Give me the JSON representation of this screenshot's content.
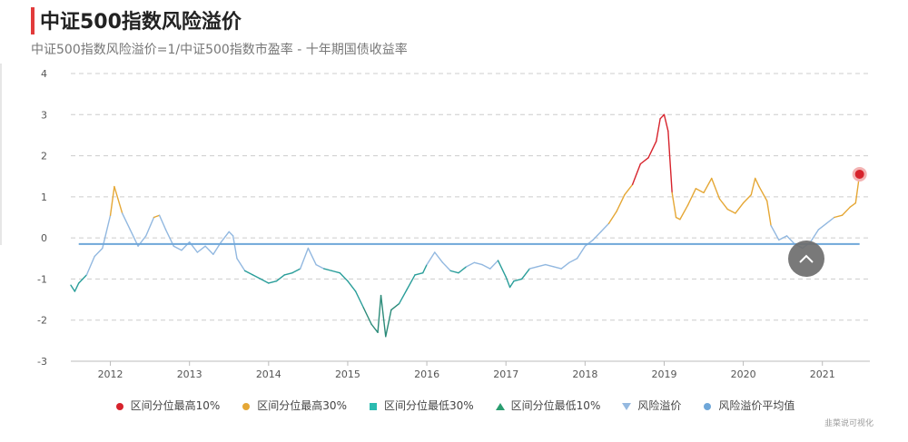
{
  "header": {
    "title": "中证500指数风险溢价",
    "subtitle": "中证500指数风险溢价=1/中证500指数市盈率 - 十年期国债收益率"
  },
  "source": "韭菜说可视化",
  "legend": [
    {
      "label": "区间分位最高10%",
      "color": "#d7232c",
      "marker": "circle"
    },
    {
      "label": "区间分位最高30%",
      "color": "#e5a735",
      "marker": "circle"
    },
    {
      "label": "区间分位最低30%",
      "color": "#2bbbb0",
      "marker": "square"
    },
    {
      "label": "区间分位最低10%",
      "color": "#2a9d70",
      "marker": "triangle"
    },
    {
      "label": "风险溢价",
      "color": "#95b9e0",
      "marker": "triangle-down"
    },
    {
      "label": "风险溢价平均值",
      "color": "#6fa7d9",
      "marker": "circle"
    }
  ],
  "colors": {
    "top10": "#d7232c",
    "top30": "#e5a735",
    "low30": "#2a9e9a",
    "low10": "#2a8a78",
    "mid": "#92b8e0",
    "average": "#6fa7d9",
    "grid": "#cccccc"
  },
  "chart_data": {
    "type": "line",
    "title": "中证500指数风险溢价",
    "ylim": [
      -3,
      4
    ],
    "yticks": [
      "4",
      "3",
      "2",
      "1",
      "0",
      "-1",
      "-2",
      "-3"
    ],
    "xlim": [
      2011.5,
      2021.6
    ],
    "xticks": [
      "2012",
      "2013",
      "2014",
      "2015",
      "2016",
      "2017",
      "2018",
      "2019",
      "2020",
      "2021"
    ],
    "average": -0.15,
    "last_point": {
      "x": 2021.47,
      "y": 1.55
    },
    "series": [
      {
        "name": "风险溢价",
        "x": [
          2011.5,
          2011.55,
          2011.6,
          2011.7,
          2011.8,
          2011.9,
          2012.0,
          2012.05,
          2012.15,
          2012.25,
          2012.35,
          2012.45,
          2012.55,
          2012.62,
          2012.7,
          2012.8,
          2012.9,
          2013.0,
          2013.1,
          2013.2,
          2013.3,
          2013.4,
          2013.5,
          2013.55,
          2013.6,
          2013.7,
          2013.8,
          2013.9,
          2014.0,
          2014.1,
          2014.2,
          2014.3,
          2014.4,
          2014.5,
          2014.6,
          2014.7,
          2014.8,
          2014.9,
          2015.0,
          2015.1,
          2015.2,
          2015.3,
          2015.38,
          2015.42,
          2015.48,
          2015.55,
          2015.65,
          2015.75,
          2015.85,
          2015.95,
          2016.0,
          2016.1,
          2016.2,
          2016.3,
          2016.4,
          2016.5,
          2016.6,
          2016.7,
          2016.8,
          2016.9,
          2017.0,
          2017.05,
          2017.1,
          2017.2,
          2017.3,
          2017.4,
          2017.5,
          2017.6,
          2017.7,
          2017.8,
          2017.9,
          2018.0,
          2018.1,
          2018.2,
          2018.3,
          2018.4,
          2018.5,
          2018.6,
          2018.7,
          2018.8,
          2018.9,
          2018.95,
          2019.0,
          2019.05,
          2019.1,
          2019.15,
          2019.2,
          2019.3,
          2019.4,
          2019.5,
          2019.6,
          2019.7,
          2019.8,
          2019.9,
          2020.0,
          2020.1,
          2020.15,
          2020.2,
          2020.3,
          2020.35,
          2020.45,
          2020.55,
          2020.65,
          2020.75,
          2020.85,
          2020.95,
          2021.05,
          2021.15,
          2021.25,
          2021.35,
          2021.42,
          2021.47
        ],
        "values": [
          -1.15,
          -1.3,
          -1.1,
          -0.9,
          -0.45,
          -0.25,
          0.55,
          1.25,
          0.6,
          0.2,
          -0.2,
          0.05,
          0.5,
          0.55,
          0.2,
          -0.2,
          -0.3,
          -0.1,
          -0.35,
          -0.2,
          -0.4,
          -0.1,
          0.15,
          0.05,
          -0.5,
          -0.8,
          -0.9,
          -1.0,
          -1.1,
          -1.05,
          -0.9,
          -0.85,
          -0.75,
          -0.25,
          -0.65,
          -0.75,
          -0.8,
          -0.85,
          -1.05,
          -1.3,
          -1.7,
          -2.1,
          -2.3,
          -1.4,
          -2.4,
          -1.75,
          -1.6,
          -1.25,
          -0.9,
          -0.85,
          -0.65,
          -0.35,
          -0.6,
          -0.8,
          -0.85,
          -0.7,
          -0.6,
          -0.65,
          -0.75,
          -0.55,
          -0.95,
          -1.2,
          -1.05,
          -1.0,
          -0.75,
          -0.7,
          -0.65,
          -0.7,
          -0.75,
          -0.6,
          -0.5,
          -0.2,
          -0.05,
          0.15,
          0.35,
          0.65,
          1.05,
          1.3,
          1.8,
          1.95,
          2.35,
          2.9,
          3.0,
          2.6,
          1.1,
          0.5,
          0.45,
          0.8,
          1.2,
          1.1,
          1.45,
          0.95,
          0.7,
          0.6,
          0.85,
          1.05,
          1.45,
          1.25,
          0.9,
          0.3,
          -0.05,
          0.05,
          -0.15,
          -0.25,
          -0.1,
          0.2,
          0.35,
          0.5,
          0.55,
          0.75,
          0.85,
          1.55
        ]
      }
    ]
  }
}
